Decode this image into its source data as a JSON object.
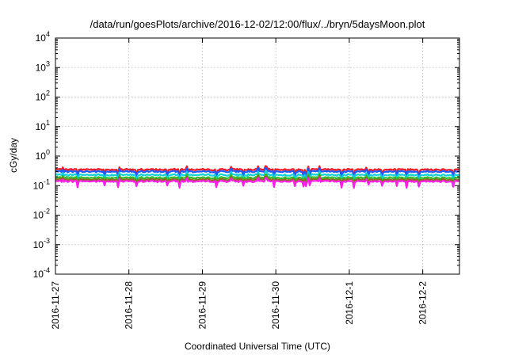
{
  "chart_data": {
    "type": "line",
    "title": "/data/run/goesPlots/archive/2016-12-02/12:00/flux/../bryn/5daysMoon.plot",
    "xlabel": "Coordinated Universal Time (UTC)",
    "ylabel": "cGy/day",
    "yscale": "log",
    "ylim": [
      0.0001,
      10000
    ],
    "xlim": [
      "2016-11-27 00:00",
      "2016-12-02 12:00"
    ],
    "grid": true,
    "legend": "none",
    "y_ticks": [
      {
        "base": "10",
        "exp": "4",
        "value": 10000
      },
      {
        "base": "10",
        "exp": "3",
        "value": 1000
      },
      {
        "base": "10",
        "exp": "2",
        "value": 100
      },
      {
        "base": "10",
        "exp": "1",
        "value": 10
      },
      {
        "base": "10",
        "exp": "0",
        "value": 1
      },
      {
        "base": "10",
        "exp": "-1",
        "value": 0.1
      },
      {
        "base": "10",
        "exp": "-2",
        "value": 0.01
      },
      {
        "base": "10",
        "exp": "-3",
        "value": 0.001
      },
      {
        "base": "10",
        "exp": "-4",
        "value": 0.0001
      }
    ],
    "x_ticks": [
      "2016-11-27",
      "2016-11-28",
      "2016-11-29",
      "2016-11-30",
      "2016-12-1",
      "2016-12-2"
    ],
    "series": [
      {
        "color": "#ee1c25",
        "level": 0.35,
        "dip": 0.6,
        "values": []
      },
      {
        "color": "#1e5bff",
        "level": 0.3,
        "dip": 0.6,
        "values": []
      },
      {
        "color": "#11d0d8",
        "level": 0.23,
        "dip": 0.6,
        "values": []
      },
      {
        "color": "#2ebd2e",
        "level": 0.185,
        "dip": 0.6,
        "values": []
      },
      {
        "color": "#8d6b1e",
        "level": 0.16,
        "dip": 0.6,
        "values": []
      },
      {
        "color": "#ff1ee8",
        "level": 0.14,
        "dip": 0.55,
        "values": []
      }
    ]
  }
}
